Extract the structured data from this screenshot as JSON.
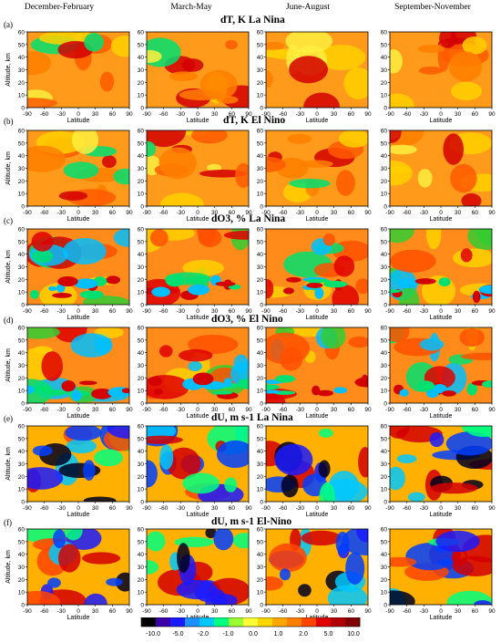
{
  "seasons": [
    "December-February",
    "March-May",
    "June-August",
    "September-November"
  ],
  "rows": [
    {
      "label": "(a)",
      "title": "dT, K     La Nina",
      "field": "dT"
    },
    {
      "label": "(b)",
      "title": "dT, K     El Nino",
      "field": "dT"
    },
    {
      "label": "(c)",
      "title": "dO3, %    La Nina",
      "field": "dO3"
    },
    {
      "label": "(d)",
      "title": "dO3, %    El Nino",
      "field": "dO3"
    },
    {
      "label": "(e)",
      "title": "dU, m s-1     La Nina",
      "field": "dU"
    },
    {
      "label": "(f)",
      "title": "dU, m s-1     El-Nino",
      "field": "dU"
    }
  ],
  "axes": {
    "ylabel": "Altitude, km",
    "xlabel": "Latitude",
    "xticks": [
      "-90",
      "-60",
      "-30",
      "0",
      "30",
      "60",
      "90"
    ],
    "yticks": [
      "0",
      "10",
      "20",
      "30",
      "40",
      "50",
      "60"
    ]
  },
  "colorbar": {
    "ticks": [
      "-10.0",
      "-5.0",
      "-2.0",
      "-1.0",
      "0.0",
      "1.0",
      "2.0",
      "5.0",
      "10.0"
    ],
    "colors": [
      "#000000",
      "#3b00a8",
      "#1a1aff",
      "#1e90ff",
      "#00c8ff",
      "#00ff7f",
      "#9aff32",
      "#ffff33",
      "#ffd700",
      "#ffa500",
      "#ff7f00",
      "#ff4500",
      "#e00000",
      "#b00000",
      "#800000"
    ]
  },
  "chart_data": {
    "type": "heatmap",
    "description_axes": {
      "x": "Latitude",
      "y": "Altitude, km",
      "xlim": [
        -90,
        90
      ],
      "ylim": [
        0,
        60
      ]
    },
    "panels_grid": {
      "rows": 6,
      "columns": 4
    }
  }
}
